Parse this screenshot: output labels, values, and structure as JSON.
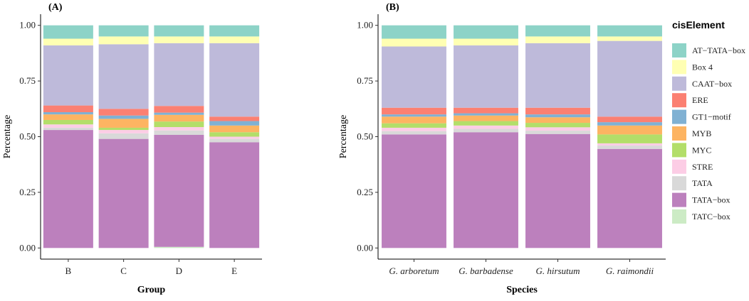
{
  "legend": {
    "title": "cisElement",
    "entries": [
      {
        "name": "AT−TATA−box",
        "color": "#8DD3C7"
      },
      {
        "name": "Box 4",
        "color": "#FFFFB3"
      },
      {
        "name": "CAAT−box",
        "color": "#BEBADA"
      },
      {
        "name": "ERE",
        "color": "#FB8072"
      },
      {
        "name": "GT1−motif",
        "color": "#80B1D3"
      },
      {
        "name": "MYB",
        "color": "#FDB462"
      },
      {
        "name": "MYC",
        "color": "#B3DE69"
      },
      {
        "name": "STRE",
        "color": "#FCCDE5"
      },
      {
        "name": "TATA",
        "color": "#D9D9D9"
      },
      {
        "name": "TATA−box",
        "color": "#BC80BD"
      },
      {
        "name": "TATC−box",
        "color": "#CCEBC5"
      }
    ]
  },
  "chart_data": [
    {
      "type": "bar",
      "stacked": true,
      "panel_label": "(A)",
      "xlabel": "Group",
      "ylabel": "Percentage",
      "ylim": [
        0,
        1
      ],
      "yticks": [
        "0.00",
        "0.25",
        "0.50",
        "0.75",
        "1.00"
      ],
      "categories": [
        "B",
        "C",
        "D",
        "E"
      ],
      "italic_categories": false,
      "series": [
        {
          "name": "TATC−box",
          "values": [
            0.0,
            0.0,
            0.005,
            0.0
          ]
        },
        {
          "name": "TATA−box",
          "values": [
            0.53,
            0.49,
            0.503,
            0.475
          ]
        },
        {
          "name": "TATA",
          "values": [
            0.01,
            0.025,
            0.02,
            0.015
          ]
        },
        {
          "name": "STRE",
          "values": [
            0.015,
            0.015,
            0.015,
            0.01
          ]
        },
        {
          "name": "MYC",
          "values": [
            0.02,
            0.01,
            0.025,
            0.02
          ]
        },
        {
          "name": "MYB",
          "values": [
            0.025,
            0.04,
            0.03,
            0.03
          ]
        },
        {
          "name": "GT1−motif",
          "values": [
            0.01,
            0.015,
            0.01,
            0.02
          ]
        },
        {
          "name": "ERE",
          "values": [
            0.03,
            0.03,
            0.03,
            0.02
          ]
        },
        {
          "name": "CAAT−box",
          "values": [
            0.27,
            0.29,
            0.282,
            0.33
          ]
        },
        {
          "name": "Box 4",
          "values": [
            0.03,
            0.035,
            0.03,
            0.03
          ]
        },
        {
          "name": "AT−TATA−box",
          "values": [
            0.06,
            0.05,
            0.05,
            0.05
          ]
        }
      ]
    },
    {
      "type": "bar",
      "stacked": true,
      "panel_label": "(B)",
      "xlabel": "Species",
      "ylabel": "Percentage",
      "ylim": [
        0,
        1
      ],
      "yticks": [
        "0.00",
        "0.25",
        "0.50",
        "0.75",
        "1.00"
      ],
      "categories": [
        "G. arboretum",
        "G. barbadense",
        "G. hirsutum",
        "G. raimondii"
      ],
      "italic_categories": true,
      "series": [
        {
          "name": "TATC−box",
          "values": [
            0.0,
            0.0,
            0.0,
            0.0
          ]
        },
        {
          "name": "TATA−box",
          "values": [
            0.51,
            0.52,
            0.512,
            0.445
          ]
        },
        {
          "name": "TATA",
          "values": [
            0.015,
            0.015,
            0.015,
            0.015
          ]
        },
        {
          "name": "STRE",
          "values": [
            0.015,
            0.015,
            0.015,
            0.01
          ]
        },
        {
          "name": "MYC",
          "values": [
            0.02,
            0.02,
            0.02,
            0.04
          ]
        },
        {
          "name": "MYB",
          "values": [
            0.03,
            0.025,
            0.025,
            0.04
          ]
        },
        {
          "name": "GT1−motif",
          "values": [
            0.01,
            0.01,
            0.013,
            0.015
          ]
        },
        {
          "name": "ERE",
          "values": [
            0.03,
            0.025,
            0.03,
            0.025
          ]
        },
        {
          "name": "CAAT−box",
          "values": [
            0.275,
            0.28,
            0.29,
            0.34
          ]
        },
        {
          "name": "Box 4",
          "values": [
            0.035,
            0.03,
            0.03,
            0.02
          ]
        },
        {
          "name": "AT−TATA−box",
          "values": [
            0.06,
            0.06,
            0.05,
            0.05
          ]
        }
      ]
    }
  ]
}
